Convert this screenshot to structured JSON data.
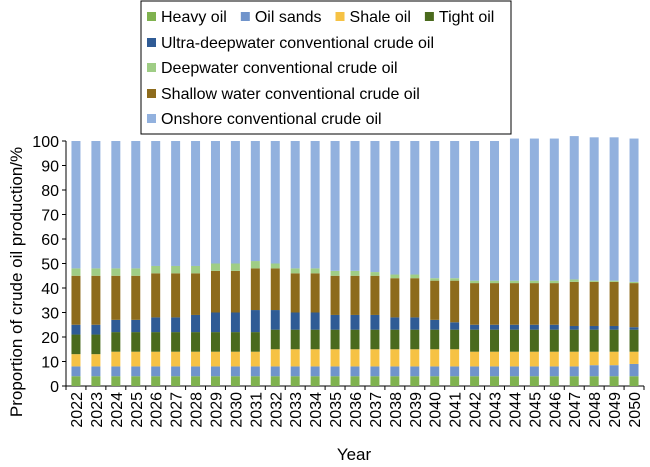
{
  "chart_data": {
    "type": "bar",
    "stacked": true,
    "xlabel": "Year",
    "ylabel": "Proportion of crude oil production/%",
    "ylim": [
      0,
      100
    ],
    "yticks": [
      0,
      10,
      20,
      30,
      40,
      50,
      60,
      70,
      80,
      90,
      100
    ],
    "legend_position": "top",
    "categories": [
      "2022",
      "2023",
      "2024",
      "2025",
      "2026",
      "2027",
      "2028",
      "2029",
      "2030",
      "2031",
      "2032",
      "2033",
      "2034",
      "2035",
      "2036",
      "2037",
      "2038",
      "2039",
      "2040",
      "2041",
      "2042",
      "2043",
      "2044",
      "2045",
      "2046",
      "2047",
      "2048",
      "2049",
      "2050"
    ],
    "series": [
      {
        "name": "Heavy oil",
        "color": "#7fb24f",
        "values": [
          4,
          4,
          4,
          4,
          4,
          4,
          4,
          4,
          4,
          4,
          4,
          4,
          4,
          4,
          4,
          4,
          4,
          4,
          4,
          4,
          4,
          4,
          4,
          4,
          4,
          4,
          4,
          4,
          4
        ]
      },
      {
        "name": "Oil sands",
        "color": "#7094cb",
        "values": [
          4,
          4,
          4,
          4,
          4,
          4,
          4,
          4,
          4,
          4,
          4,
          4,
          4,
          4,
          4,
          4,
          4,
          4,
          4,
          4,
          4,
          4,
          4,
          4,
          4,
          4,
          4.5,
          4.5,
          5
        ]
      },
      {
        "name": "Shale oil",
        "color": "#f6c244",
        "values": [
          5,
          5,
          6,
          6,
          6,
          6,
          6,
          6,
          6,
          6,
          7,
          7,
          7,
          7,
          7,
          7,
          7,
          7,
          7,
          7,
          6,
          6,
          6,
          6,
          6,
          6,
          5.5,
          5.5,
          5
        ]
      },
      {
        "name": "Tight oil",
        "color": "#4a6a1d",
        "values": [
          8,
          8,
          8,
          8,
          8,
          8,
          8,
          8,
          8,
          8,
          8,
          8,
          8,
          8,
          8,
          8,
          8,
          8,
          8,
          8,
          9,
          9,
          9,
          9,
          9,
          9,
          9,
          9,
          9
        ]
      },
      {
        "name": "Ultra-deepwater conventional crude oil",
        "color": "#2f5b95",
        "values": [
          4,
          4,
          5,
          5,
          6,
          6,
          7,
          8,
          8,
          9,
          8,
          7,
          7,
          6,
          6,
          6,
          5,
          5,
          4,
          3,
          2,
          2,
          2,
          2,
          2,
          1.5,
          1.5,
          1.5,
          1
        ]
      },
      {
        "name": "Shallow water conventional crude oil",
        "color": "#8d6b1c",
        "values": [
          20,
          20,
          18,
          18,
          18,
          18,
          17,
          17,
          17,
          17,
          17,
          16,
          16,
          16,
          16,
          16,
          16,
          16,
          16,
          17,
          17,
          17,
          17,
          17,
          17,
          18,
          18,
          18,
          18
        ]
      },
      {
        "name": "Deepwater conventional crude oil",
        "color": "#9fcd85",
        "values": [
          3,
          3,
          3,
          3,
          3,
          3,
          3,
          3,
          3,
          3,
          2,
          2,
          2,
          2,
          2,
          1.5,
          1.5,
          1.5,
          1,
          1,
          1,
          1,
          1,
          1,
          1,
          1,
          0.5,
          0.5,
          0.5
        ]
      },
      {
        "name": "Onshore conventional crude oil",
        "color": "#92b1de",
        "values": [
          52,
          52,
          52,
          52,
          51,
          51,
          51,
          50,
          50,
          49,
          50,
          52,
          52,
          53,
          53,
          53.5,
          54.5,
          54.5,
          56,
          56,
          57,
          57,
          58,
          58,
          58,
          58.5,
          58.5,
          58.5,
          58.5
        ]
      }
    ],
    "legend": [
      [
        "Heavy oil",
        "Oil sands",
        "Shale oil",
        "Tight oil"
      ],
      [
        "Ultra-deepwater conventional crude oil"
      ],
      [
        "Deepwater conventional crude oil"
      ],
      [
        "Shallow water conventional crude oil"
      ],
      [
        "Onshore conventional crude oil"
      ]
    ]
  }
}
